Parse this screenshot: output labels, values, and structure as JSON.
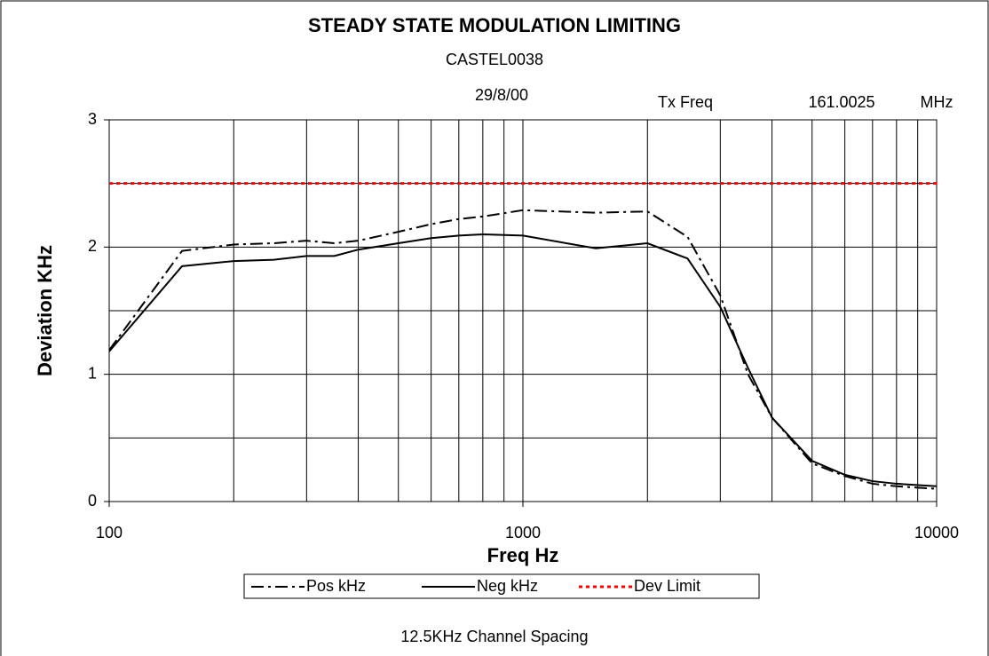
{
  "chart_data": {
    "type": "line",
    "title": "STEADY STATE MODULATION LIMITING",
    "subtitle": "CASTEL0038",
    "annotations": [
      "29/8/00",
      "Tx Freq",
      "161.0025",
      "MHz"
    ],
    "footer": "12.5KHz Channel Spacing",
    "x_label": "Freq Hz",
    "y_label": "Deviation KHz",
    "x": [
      100,
      150,
      200,
      250,
      300,
      350,
      400,
      500,
      600,
      700,
      800,
      1000,
      1500,
      2000,
      2500,
      3000,
      3500,
      4000,
      5000,
      6000,
      7000,
      8000,
      10000
    ],
    "series": [
      {
        "name": "Pos kHz",
        "color": "#000000",
        "dash": "dashdot",
        "values": [
          1.19,
          1.97,
          2.02,
          2.03,
          2.05,
          2.03,
          2.05,
          2.12,
          2.18,
          2.22,
          2.24,
          2.29,
          2.27,
          2.28,
          2.08,
          1.62,
          1.0,
          0.66,
          0.3,
          0.2,
          0.14,
          0.12,
          0.1
        ]
      },
      {
        "name": "Neg kHz",
        "color": "#000000",
        "dash": "solid",
        "values": [
          1.18,
          1.85,
          1.89,
          1.9,
          1.93,
          1.93,
          1.98,
          2.03,
          2.07,
          2.09,
          2.1,
          2.09,
          1.99,
          2.03,
          1.91,
          1.53,
          1.05,
          0.66,
          0.32,
          0.21,
          0.16,
          0.14,
          0.12
        ]
      },
      {
        "name": "Dev Limit",
        "color": "#ff0000",
        "dash": "dotted",
        "values": [
          2.5,
          2.5,
          2.5,
          2.5,
          2.5,
          2.5,
          2.5,
          2.5,
          2.5,
          2.5,
          2.5,
          2.5,
          2.5,
          2.5,
          2.5,
          2.5,
          2.5,
          2.5,
          2.5,
          2.5,
          2.5,
          2.5,
          2.5
        ]
      }
    ],
    "xlog": true,
    "xlim": [
      100,
      10000
    ],
    "xticks": [
      100,
      1000,
      10000
    ],
    "xgrid": [
      100,
      200,
      300,
      400,
      500,
      600,
      700,
      800,
      900,
      1000,
      2000,
      3000,
      4000,
      5000,
      6000,
      7000,
      8000,
      9000,
      10000
    ],
    "ylim": [
      0,
      3
    ],
    "yticks": [
      0,
      1,
      2,
      3
    ],
    "ygrid": [
      0,
      0.5,
      1,
      1.5,
      2,
      2.5,
      3
    ],
    "grid": true,
    "legend": "bottom"
  }
}
